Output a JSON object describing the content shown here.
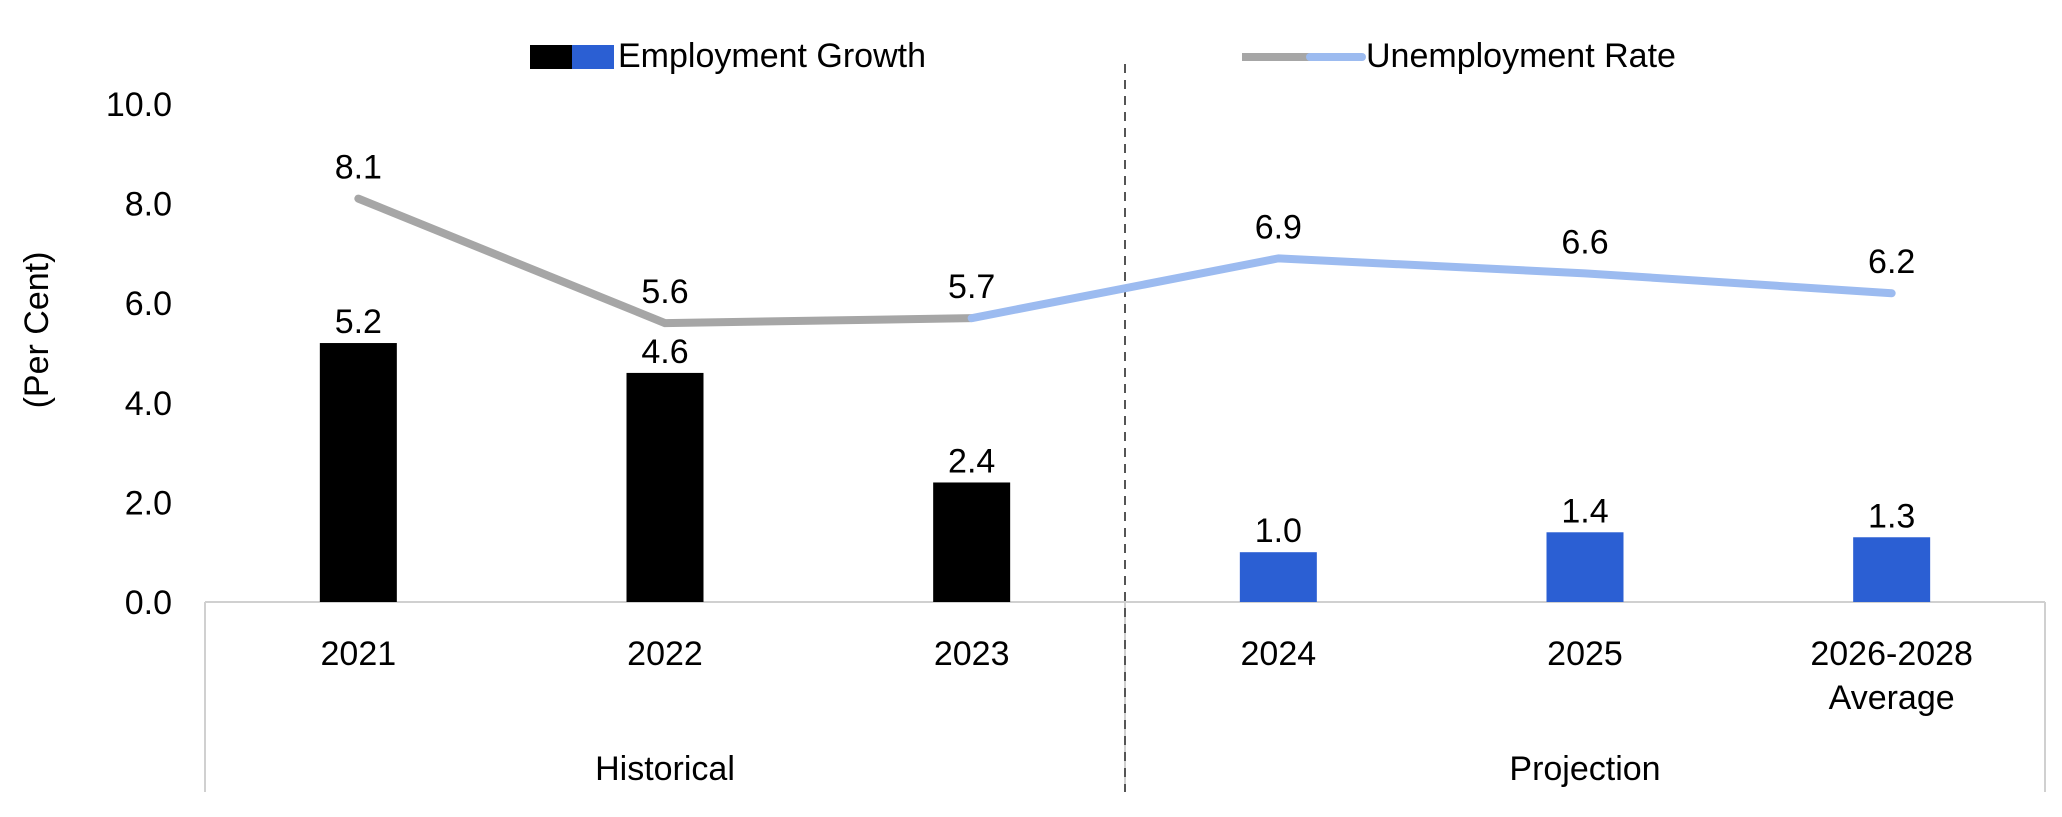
{
  "chart_data": {
    "type": "bar",
    "ylabel": "(Per Cent)",
    "ylim": [
      0,
      10
    ],
    "y_ticks": [
      "0.0",
      "2.0",
      "4.0",
      "6.0",
      "8.0",
      "10.0"
    ],
    "grid": false,
    "legend_placement": "top",
    "categories": [
      "2021",
      "2022",
      "2023",
      "2024",
      "2025",
      "2026-2028 Average"
    ],
    "groups": [
      {
        "label": "Historical",
        "categories": [
          "2021",
          "2022",
          "2023"
        ]
      },
      {
        "label": "Projection",
        "categories": [
          "2024",
          "2025",
          "2026-2028 Average"
        ]
      }
    ],
    "series": [
      {
        "name": "Employment Growth",
        "type": "bar",
        "values": [
          5.2,
          4.6,
          2.4,
          1.0,
          1.4,
          1.3
        ],
        "labels": [
          "5.2",
          "4.6",
          "2.4",
          "1.0",
          "1.4",
          "1.3"
        ],
        "colors": {
          "historical": "#000000",
          "projection": "#2b5fd3"
        }
      },
      {
        "name": "Unemployment Rate",
        "type": "line",
        "values": [
          8.1,
          5.6,
          5.7,
          6.9,
          6.6,
          6.2
        ],
        "labels": [
          "8.1",
          "5.6",
          "5.7",
          "6.9",
          "6.6",
          "6.2"
        ],
        "colors": {
          "historical": "#a6a6a6",
          "projection": "#9cbbf0"
        }
      }
    ]
  }
}
